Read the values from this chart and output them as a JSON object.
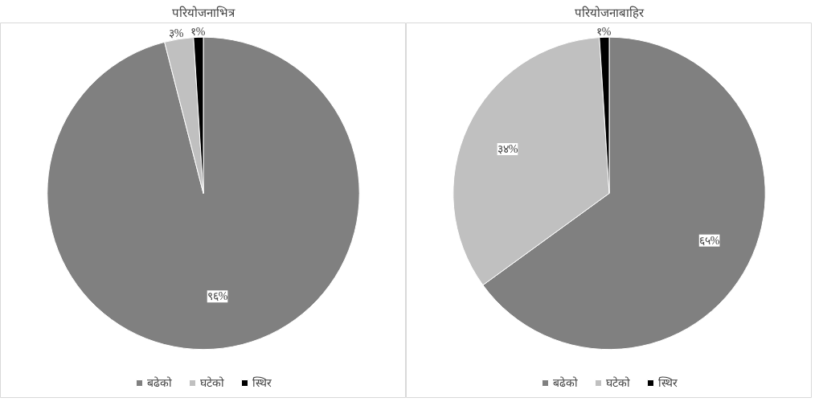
{
  "chart_data": [
    {
      "type": "pie",
      "title": "परियोजनाभित्र",
      "categories": [
        "बढेको",
        "घटेको",
        "स्थिर"
      ],
      "values": [
        96,
        3,
        1
      ],
      "colors": [
        "#808080",
        "#c0c0c0",
        "#000000"
      ],
      "value_labels": [
        "९६%",
        "३%",
        "१%"
      ],
      "legend": "bottom"
    },
    {
      "type": "pie",
      "title": "परियोजनाबाहिर",
      "categories": [
        "बढेको",
        "घटेको",
        "स्थिर"
      ],
      "values": [
        65,
        34,
        1
      ],
      "colors": [
        "#808080",
        "#c0c0c0",
        "#000000"
      ],
      "value_labels": [
        "६५%",
        "३४%",
        "१%"
      ],
      "legend": "bottom"
    }
  ]
}
